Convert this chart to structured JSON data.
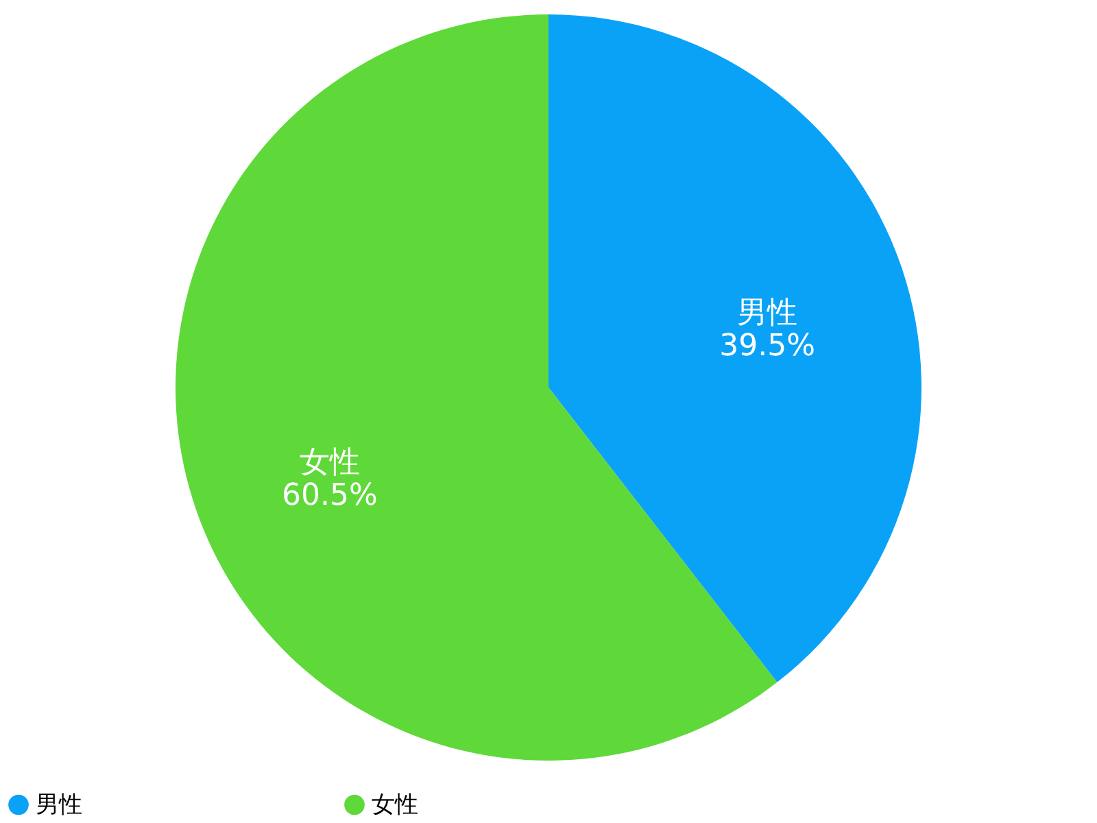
{
  "chart_data": {
    "type": "pie",
    "categories": [
      "男性",
      "女性"
    ],
    "values": [
      39.5,
      60.5
    ],
    "value_labels": [
      "39.5%",
      "60.5%"
    ],
    "colors": [
      "#0aa2f7",
      "#5fd83a"
    ],
    "legend": "bottom"
  }
}
